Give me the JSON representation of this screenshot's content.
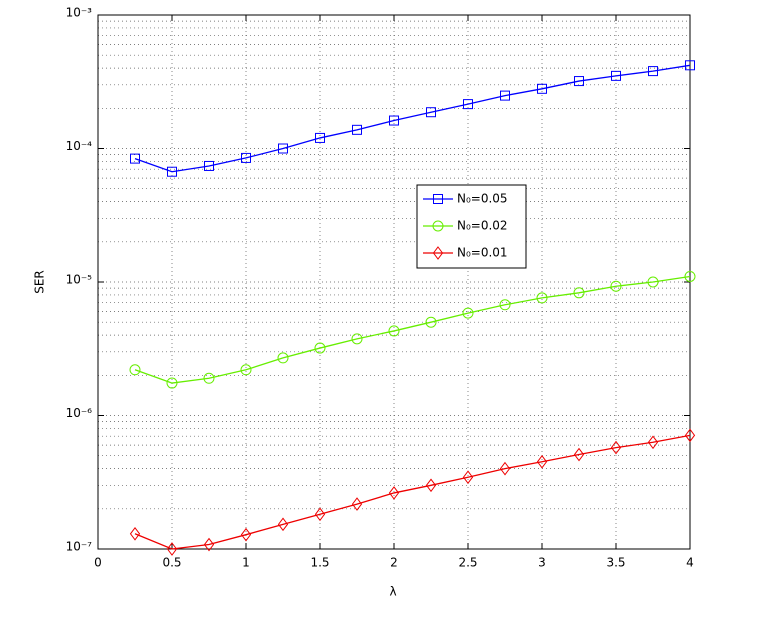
{
  "chart_data": {
    "type": "line",
    "xlabel": "λ",
    "ylabel": "SER",
    "x": [
      0.25,
      0.5,
      0.75,
      1,
      1.25,
      1.5,
      1.75,
      2,
      2.25,
      2.5,
      2.75,
      3,
      3.25,
      3.5,
      3.75,
      4
    ],
    "series": [
      {
        "name": "N₀=0.05",
        "color": "#0000ff",
        "marker": "square",
        "values": [
          8.4e-05,
          6.7e-05,
          7.4e-05,
          8.5e-05,
          0.0001,
          0.00012,
          0.000138,
          0.000162,
          0.000187,
          0.000215,
          0.000249,
          0.00028,
          0.00032,
          0.00035,
          0.00038,
          0.00042
        ]
      },
      {
        "name": "N₀=0.02",
        "color": "#66ee00",
        "marker": "circle",
        "values": [
          2.2e-06,
          1.75e-06,
          1.9e-06,
          2.2e-06,
          2.7e-06,
          3.2e-06,
          3.75e-06,
          4.3e-06,
          5e-06,
          5.85e-06,
          6.75e-06,
          7.6e-06,
          8.3e-06,
          9.3e-06,
          1e-05,
          1.1e-05
        ]
      },
      {
        "name": "N₀=0.01",
        "color": "#ee0000",
        "marker": "diamond",
        "values": [
          1.3e-07,
          1e-07,
          1.08e-07,
          1.28e-07,
          1.53e-07,
          1.82e-07,
          2.17e-07,
          2.63e-07,
          3e-07,
          3.45e-07,
          4e-07,
          4.5e-07,
          5.1e-07,
          5.75e-07,
          6.3e-07,
          7.1e-07
        ]
      }
    ],
    "xlim": [
      0,
      4
    ],
    "xticks": [
      0,
      0.5,
      1,
      1.5,
      2,
      2.5,
      3,
      3.5,
      4
    ],
    "ylim": [
      1e-07,
      0.001
    ],
    "yticks": [
      {
        "value": 1e-07,
        "label": "10⁻⁷"
      },
      {
        "value": 1e-06,
        "label": "10⁻⁶"
      },
      {
        "value": 1e-05,
        "label": "10⁻⁵"
      },
      {
        "value": 0.0001,
        "label": "10⁻⁴"
      },
      {
        "value": 0.001,
        "label": "10⁻³"
      }
    ],
    "log_y": true,
    "grid": true,
    "minor_grid": true,
    "legend": "center-right"
  }
}
